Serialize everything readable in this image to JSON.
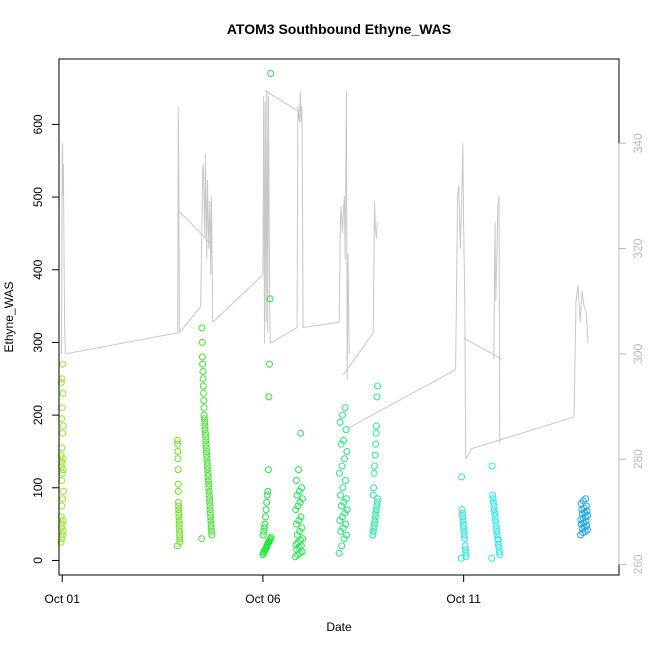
{
  "chart_data": {
    "type": "scatter",
    "title": "ATOM3 Southbound Ethyne_WAS",
    "xlabel": "Date",
    "ylabel": "Ethyne_WAS",
    "xlim": [
      0.92,
      14.87
    ],
    "ylim": [
      -20,
      690
    ],
    "x_tick_labels": [
      "Oct 01",
      "Oct 06",
      "Oct 11"
    ],
    "x_tick_values": [
      1,
      6,
      11
    ],
    "y_ticks": [
      0,
      100,
      200,
      300,
      400,
      500,
      600
    ],
    "y2_ticks": [
      260,
      280,
      300,
      320,
      340
    ],
    "y2lim": [
      258,
      356
    ],
    "colors": {
      "axis": "#000000",
      "secondary_axis": "#bbbbbb",
      "secondary_line": "#c8c8c8"
    },
    "clusters": [
      {
        "x": 1.0,
        "width": 0.06,
        "values": [
          25,
          30,
          35,
          40,
          45,
          50,
          55,
          60,
          75,
          85,
          95,
          110,
          120,
          125,
          130,
          135,
          140,
          145,
          155,
          175,
          185,
          195,
          210,
          230,
          245,
          250,
          270
        ],
        "color": "#8ef020"
      },
      {
        "x": 3.9,
        "width": 0.06,
        "values": [
          20,
          25,
          30,
          35,
          40,
          45,
          50,
          55,
          60,
          65,
          70,
          75,
          80,
          95,
          105,
          125,
          140,
          150,
          160,
          165
        ],
        "color": "#66e818"
      },
      {
        "x": 4.6,
        "width": 0.25,
        "values": [
          30,
          35,
          40,
          45,
          50,
          55,
          60,
          65,
          70,
          75,
          80,
          85,
          90,
          95,
          100,
          105,
          110,
          115,
          120,
          125,
          130,
          135,
          140,
          145,
          150,
          155,
          160,
          165,
          170,
          175,
          180,
          185,
          190,
          195,
          200,
          210,
          220,
          230,
          240,
          250,
          260,
          270,
          280,
          300,
          320
        ],
        "color": "#3ee82a"
      },
      {
        "x": 6.1,
        "width": 0.2,
        "values": [
          8,
          10,
          12,
          14,
          15,
          16,
          18,
          20,
          22,
          24,
          25,
          26,
          28,
          30,
          32,
          35,
          40,
          45,
          50,
          60,
          70,
          80,
          90,
          95,
          125,
          225,
          270,
          360,
          670
        ],
        "color": "#22e83c"
      },
      {
        "x": 6.9,
        "width": 0.18,
        "values": [
          5,
          8,
          10,
          12,
          15,
          18,
          20,
          22,
          25,
          28,
          30,
          35,
          40,
          45,
          50,
          55,
          60,
          70,
          75,
          80,
          85,
          90,
          95,
          100,
          110,
          125,
          175
        ],
        "color": "#20ea50"
      },
      {
        "x": 8.0,
        "width": 0.2,
        "values": [
          10,
          20,
          30,
          35,
          40,
          45,
          50,
          55,
          60,
          65,
          70,
          75,
          80,
          85,
          90,
          100,
          110,
          120,
          130,
          140,
          150,
          160,
          165,
          180,
          190,
          200,
          210
        ],
        "color": "#22ec78"
      },
      {
        "x": 8.8,
        "width": 0.12,
        "values": [
          35,
          40,
          45,
          50,
          55,
          60,
          65,
          70,
          75,
          80,
          85,
          90,
          100,
          120,
          130,
          145,
          160,
          175,
          185,
          225,
          240
        ],
        "color": "#22ee9c"
      },
      {
        "x": 11.0,
        "width": 0.12,
        "values": [
          3,
          5,
          10,
          15,
          20,
          30,
          35,
          40,
          45,
          50,
          55,
          60,
          65,
          70,
          115
        ],
        "color": "#22eed8"
      },
      {
        "x": 11.8,
        "width": 0.2,
        "values": [
          3,
          8,
          12,
          18,
          22,
          28,
          30,
          35,
          40,
          45,
          50,
          55,
          60,
          65,
          70,
          75,
          80,
          85,
          90,
          130
        ],
        "color": "#22eef0"
      },
      {
        "x": 14.0,
        "width": 0.18,
        "values": [
          35,
          38,
          40,
          42,
          44,
          46,
          48,
          50,
          52,
          54,
          56,
          58,
          60,
          62,
          64,
          66,
          68,
          70,
          72,
          75,
          78,
          82,
          85
        ],
        "color": "#1aa8f0"
      }
    ],
    "secondary_series": {
      "name": "",
      "axis": "right",
      "segments": [
        {
          "x": [
            0.98,
            1.0,
            1.01,
            1.02,
            1.03,
            1.04,
            1.06,
            1.08
          ],
          "y": [
            300,
            338,
            340,
            330,
            336,
            325,
            305,
            300
          ]
        },
        {
          "x": [
            1.08,
            3.88
          ],
          "y": [
            300,
            304
          ]
        },
        {
          "x": [
            3.88,
            3.89,
            3.9,
            3.91,
            3.92
          ],
          "y": [
            304,
            347,
            340,
            326,
            304
          ]
        },
        {
          "x": [
            3.92,
            4.45
          ],
          "y": [
            304,
            309
          ]
        },
        {
          "x": [
            4.45,
            4.5,
            4.52,
            4.55,
            4.57,
            4.6,
            4.62,
            4.65,
            4.68,
            4.7,
            4.72,
            4.75
          ],
          "y": [
            309,
            335,
            336,
            322,
            338,
            318,
            333,
            320,
            329,
            315,
            330,
            306
          ]
        },
        {
          "x": [
            3.92,
            4.7
          ],
          "y": [
            327,
            321
          ]
        },
        {
          "x": [
            4.75,
            6.0
          ],
          "y": [
            306,
            315
          ]
        },
        {
          "x": [
            6.0,
            6.02,
            6.04,
            6.06,
            6.08,
            6.1,
            6.12,
            6.14,
            6.16,
            6.18
          ],
          "y": [
            315,
            349,
            302,
            348,
            306,
            350,
            304,
            349,
            318,
            302
          ]
        },
        {
          "x": [
            6.05,
            6.9
          ],
          "y": [
            350,
            346
          ]
        },
        {
          "x": [
            6.18,
            6.85
          ],
          "y": [
            302,
            305
          ]
        },
        {
          "x": [
            6.85,
            6.87,
            6.89,
            6.91,
            6.93,
            6.95,
            6.97,
            6.99,
            7.0
          ],
          "y": [
            305,
            347,
            345,
            344,
            350,
            344,
            347,
            322,
            305
          ]
        },
        {
          "x": [
            7.0,
            7.9
          ],
          "y": [
            305,
            306
          ]
        },
        {
          "x": [
            7.9,
            7.93,
            7.95,
            7.98,
            8.0,
            8.03,
            8.05,
            8.08,
            8.1,
            8.12,
            8.15
          ],
          "y": [
            306,
            325,
            328,
            323,
            326,
            330,
            318,
            350,
            295,
            319,
            300
          ]
        },
        {
          "x": [
            8.0,
            8.75
          ],
          "y": [
            296,
            304
          ]
        },
        {
          "x": [
            8.75,
            8.78,
            8.8,
            8.83,
            8.85
          ],
          "y": [
            304,
            329,
            324,
            322,
            325
          ]
        },
        {
          "x": [
            8.15,
            10.8
          ],
          "y": [
            286,
            297
          ]
        },
        {
          "x": [
            10.8,
            10.85,
            10.88,
            10.92,
            10.95,
            10.98,
            11.0,
            11.03,
            11.05
          ],
          "y": [
            297,
            330,
            332,
            320,
            328,
            340,
            325,
            310,
            280
          ]
        },
        {
          "x": [
            11.05,
            11.2
          ],
          "y": [
            280,
            282
          ]
        },
        {
          "x": [
            11.0,
            11.95
          ],
          "y": [
            303,
            299
          ]
        },
        {
          "x": [
            11.75,
            11.78,
            11.8,
            11.83,
            11.85,
            11.88,
            11.9
          ],
          "y": [
            299,
            325,
            310,
            320,
            328,
            330,
            283
          ]
        },
        {
          "x": [
            11.2,
            13.75
          ],
          "y": [
            282,
            288
          ]
        },
        {
          "x": [
            13.75,
            13.8,
            13.85,
            13.9,
            13.95,
            14.0,
            14.05,
            14.1
          ],
          "y": [
            288,
            310,
            313,
            306,
            312,
            309,
            308,
            302
          ]
        }
      ]
    }
  }
}
